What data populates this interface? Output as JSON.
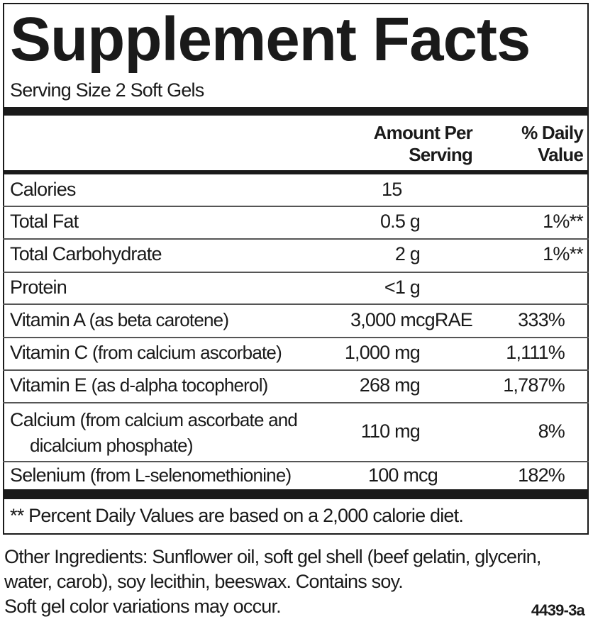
{
  "title": "Supplement Facts",
  "serving_size": "Serving Size 2 Soft Gels",
  "header": {
    "amount_line1": "Amount Per",
    "amount_line2": "Serving",
    "dv_line1": "% Daily",
    "dv_line2": "Value"
  },
  "rows": [
    {
      "name": "Calories",
      "source": "",
      "amount": "15",
      "dv": ""
    },
    {
      "name": "Total Fat",
      "source": "",
      "amount": "0.5 g",
      "dv": "1%**"
    },
    {
      "name": "Total Carbohydrate",
      "source": "",
      "amount": "2 g",
      "dv": "1%**"
    },
    {
      "name": "Protein",
      "source": "",
      "amount": "<1 g",
      "dv": ""
    },
    {
      "name": "Vitamin A",
      "source": "(as beta carotene)",
      "amount": "3,000 mcgRAE",
      "dv": "333%"
    },
    {
      "name": "Vitamin C",
      "source": "(from calcium ascorbate)",
      "amount": "1,000 mg",
      "dv": "1,111%"
    },
    {
      "name": "Vitamin E",
      "source": "(as d-alpha tocopherol)",
      "amount": "268 mg",
      "dv": "1,787%"
    },
    {
      "name": "Calcium",
      "source": "(from calcium ascorbate and",
      "source2": "dicalcium phosphate)",
      "amount": "110 mg",
      "dv": "8%"
    },
    {
      "name": "Selenium",
      "source": "(from L-selenomethionine)",
      "amount": "100 mcg",
      "dv": "182%"
    }
  ],
  "footnote": "** Percent Daily Values are based on a 2,000 calorie diet.",
  "other_ingredients": "Other Ingredients: Sunflower oil, soft gel shell (beef gelatin, glycerin, water, carob), soy lecithin, beeswax. Contains soy.",
  "note": "Soft gel color variations may occur.",
  "code": "4439-3a"
}
